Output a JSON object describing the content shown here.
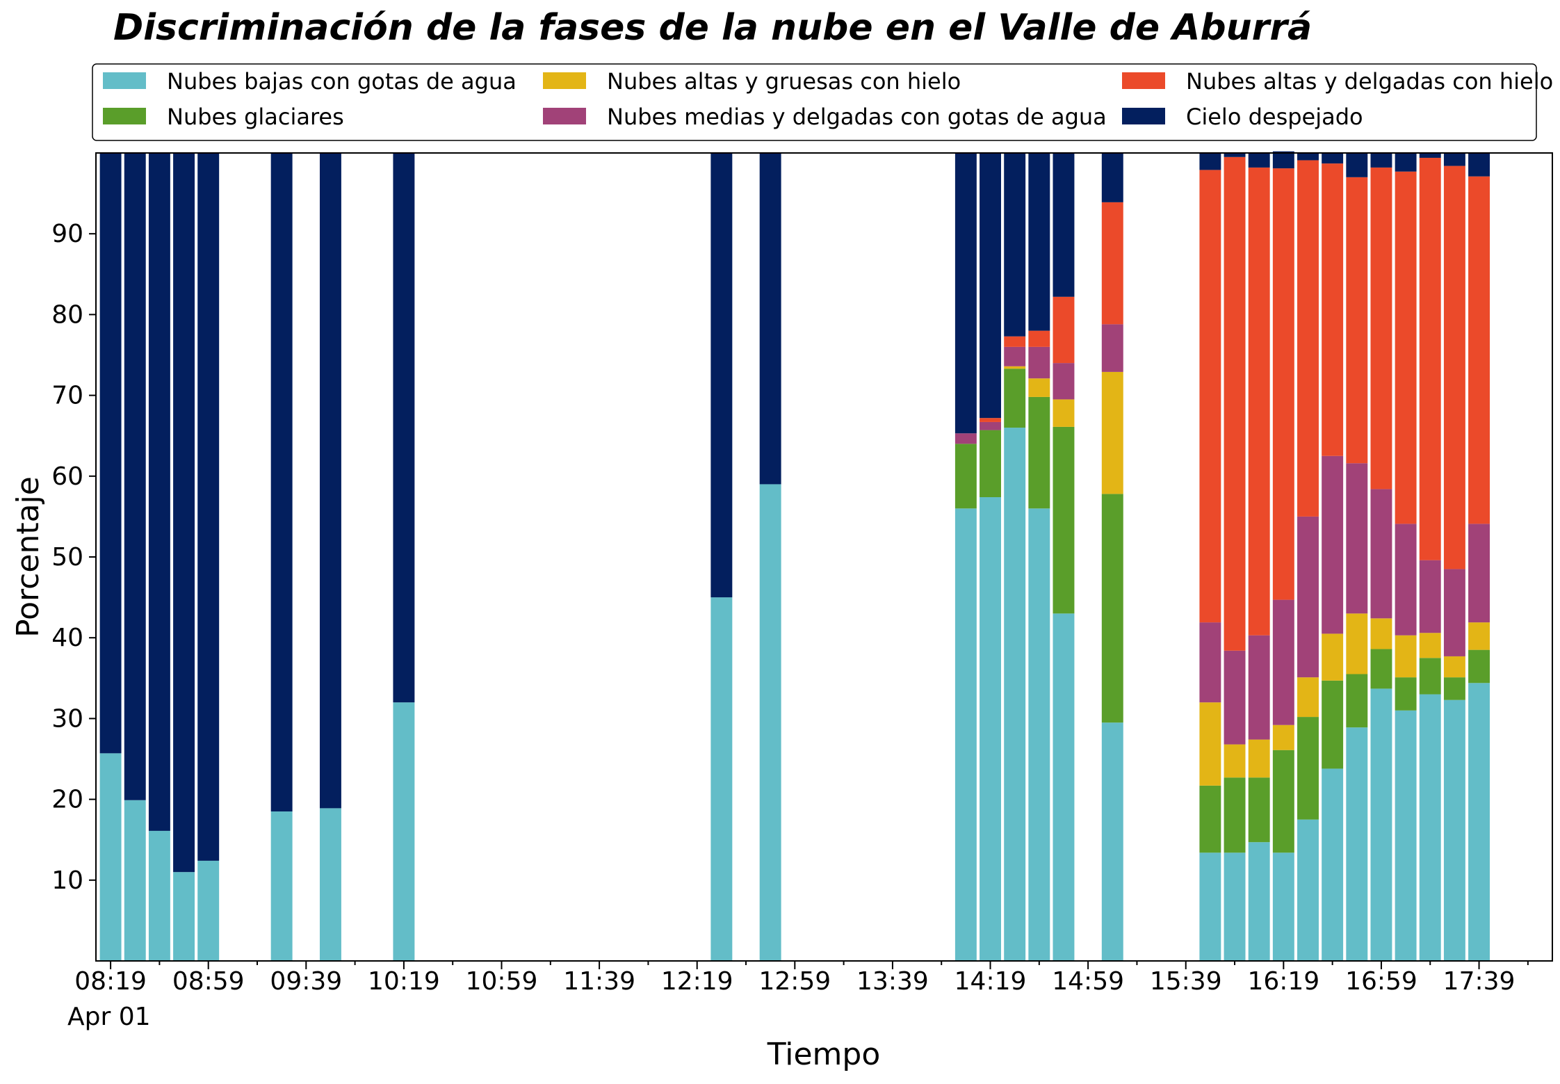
{
  "chart_data": {
    "type": "bar",
    "stacked": true,
    "title": "Discriminación de la fases de la nube en el Valle de Aburrá",
    "xlabel": "Tiempo",
    "ylabel": "Porcentaje",
    "ylim": [
      0,
      100
    ],
    "y_ticks": [
      10,
      20,
      30,
      40,
      50,
      60,
      70,
      80,
      90
    ],
    "x_tick_labels": [
      "08:19",
      "08:59",
      "09:39",
      "10:19",
      "10:59",
      "11:39",
      "12:19",
      "12:59",
      "13:39",
      "14:19",
      "14:59",
      "15:39",
      "16:19",
      "16:59",
      "17:39"
    ],
    "x_date_label": "Apr 01",
    "x_range": [
      "08:13",
      "18:09"
    ],
    "legend_position": "top (above plot, 3 columns)",
    "grid": false,
    "times": [
      "08:19",
      "08:29",
      "08:39",
      "08:49",
      "08:59",
      "09:29",
      "09:49",
      "10:19",
      "12:29",
      "12:49",
      "14:09",
      "14:19",
      "14:29",
      "14:39",
      "14:49",
      "15:09",
      "15:49",
      "15:59",
      "16:09",
      "16:19",
      "16:29",
      "16:39",
      "16:49",
      "16:59",
      "17:09",
      "17:19",
      "17:29",
      "17:39"
    ],
    "series": [
      {
        "name": "Nubes bajas con gotas de agua",
        "color": "#63bdc8",
        "values": [
          25.7,
          19.9,
          16.1,
          11.0,
          12.4,
          18.5,
          18.9,
          32.0,
          45.0,
          59.0,
          56.0,
          57.4,
          66.0,
          56.0,
          43.0,
          29.5,
          13.4,
          13.4,
          14.7,
          13.4,
          17.5,
          23.8,
          28.9,
          33.7,
          31.0,
          33.0,
          32.3,
          34.4
        ]
      },
      {
        "name": "Nubes glaciares",
        "color": "#5a9e2a",
        "values": [
          0,
          0,
          0,
          0,
          0,
          0,
          0,
          0,
          0,
          0,
          8.0,
          8.3,
          7.3,
          13.8,
          23.1,
          28.3,
          8.3,
          9.3,
          8.0,
          12.7,
          12.7,
          10.9,
          6.6,
          4.9,
          4.1,
          4.5,
          2.8,
          4.1
        ]
      },
      {
        "name": "Nubes altas y gruesas con hielo",
        "color": "#e3b516",
        "values": [
          0,
          0,
          0,
          0,
          0,
          0,
          0,
          0,
          0,
          0,
          0,
          0,
          0.3,
          2.3,
          3.4,
          15.1,
          10.3,
          4.1,
          4.7,
          3.1,
          4.9,
          5.8,
          7.5,
          3.8,
          5.2,
          3.1,
          2.6,
          3.4
        ]
      },
      {
        "name": "Nubes medias y delgadas con gotas de agua",
        "color": "#a14278",
        "values": [
          0,
          0,
          0,
          0,
          0,
          0,
          0,
          0,
          0,
          0,
          1.3,
          1.0,
          2.4,
          3.9,
          4.5,
          5.9,
          9.9,
          11.6,
          12.9,
          15.5,
          19.9,
          22.0,
          18.6,
          16.0,
          13.8,
          9.0,
          10.8,
          12.2
        ]
      },
      {
        "name": "Nubes altas y delgadas con hielo",
        "color": "#eb4a2a",
        "values": [
          0,
          0,
          0,
          0,
          0,
          0,
          0,
          0,
          0,
          0,
          0,
          0.5,
          1.3,
          2.0,
          8.2,
          15.1,
          56.0,
          61.1,
          57.9,
          53.4,
          44.1,
          36.2,
          35.4,
          39.8,
          43.6,
          49.8,
          49.9,
          43.0
        ]
      },
      {
        "name": "Cielo despejado",
        "color": "#031f5e",
        "values": [
          74.3,
          80.1,
          83.9,
          89.0,
          87.6,
          81.5,
          81.1,
          68.0,
          55.0,
          41.0,
          34.7,
          32.8,
          22.7,
          22.0,
          17.8,
          6.1,
          2.1,
          0.5,
          1.8,
          2.1,
          0.9,
          1.3,
          3.0,
          1.8,
          2.3,
          0.6,
          1.6,
          2.9
        ]
      }
    ]
  }
}
